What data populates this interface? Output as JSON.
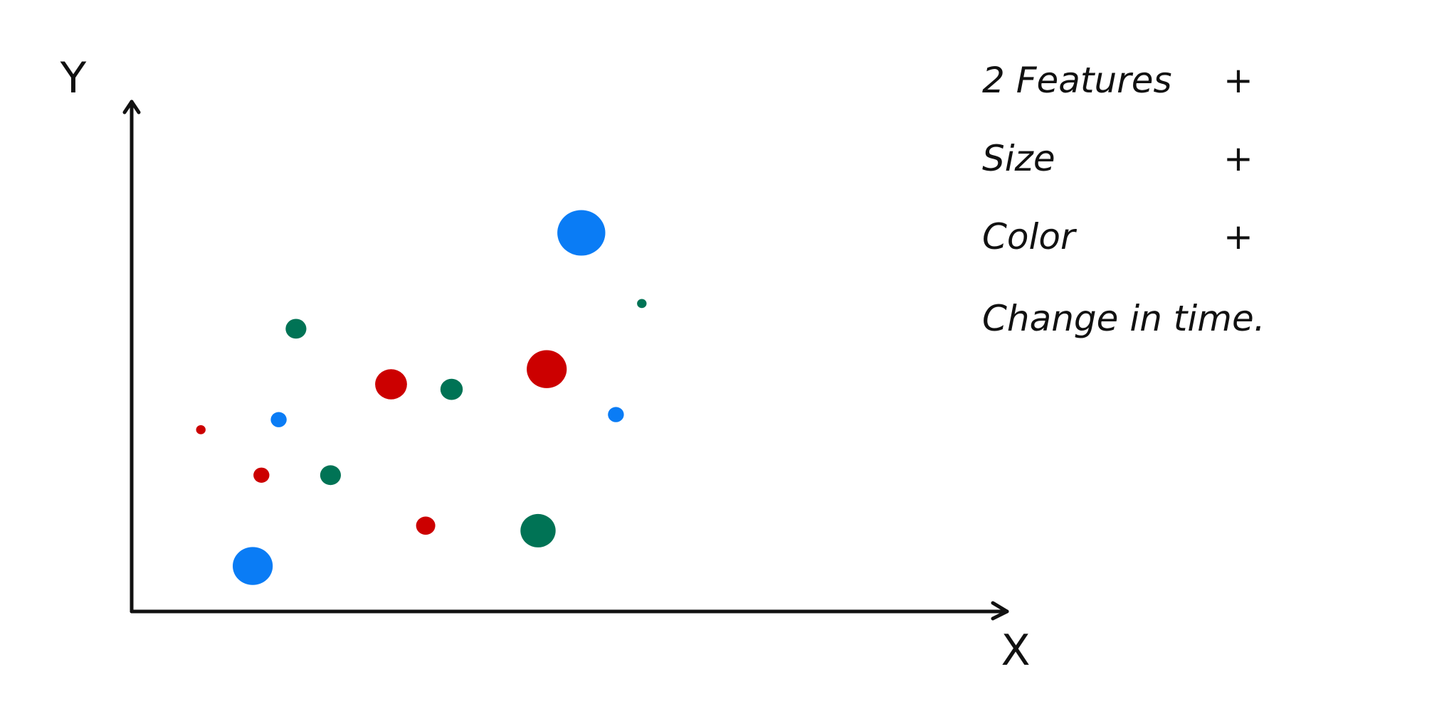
{
  "colors": {
    "ink": "#111111",
    "blue": "#0a7cf5",
    "red": "#cc0000",
    "green": "#007355"
  },
  "chart_data": {
    "type": "scatter",
    "title": "",
    "xlabel": "X",
    "ylabel": "Y",
    "xlim": [
      0,
      100
    ],
    "ylim": [
      0,
      100
    ],
    "grid": false,
    "point_size_unit": "relative",
    "series": [
      {
        "color": "#0a7cf5",
        "points": [
          {
            "x": 52,
            "y": 75,
            "size": 3
          },
          {
            "x": 17,
            "y": 38,
            "size": 1
          },
          {
            "x": 56,
            "y": 39,
            "size": 1
          },
          {
            "x": 14,
            "y": 9,
            "size": 2.5
          }
        ]
      },
      {
        "color": "#cc0000",
        "points": [
          {
            "x": 8,
            "y": 36,
            "size": 0.6
          },
          {
            "x": 30,
            "y": 45,
            "size": 2
          },
          {
            "x": 48,
            "y": 48,
            "size": 2.5
          },
          {
            "x": 15,
            "y": 27,
            "size": 1
          },
          {
            "x": 34,
            "y": 17,
            "size": 1.2
          }
        ]
      },
      {
        "color": "#007355",
        "points": [
          {
            "x": 19,
            "y": 56,
            "size": 1.3
          },
          {
            "x": 37,
            "y": 44,
            "size": 1.4
          },
          {
            "x": 59,
            "y": 61,
            "size": 0.6
          },
          {
            "x": 23,
            "y": 27,
            "size": 1.3
          },
          {
            "x": 47,
            "y": 16,
            "size": 2.2
          }
        ]
      }
    ]
  },
  "notes": {
    "items": [
      {
        "label": "2 Features",
        "mark": "+"
      },
      {
        "label": "Size",
        "mark": "+"
      },
      {
        "label": "Color",
        "mark": "+"
      },
      {
        "label": "Change in time.",
        "mark": ""
      }
    ]
  }
}
